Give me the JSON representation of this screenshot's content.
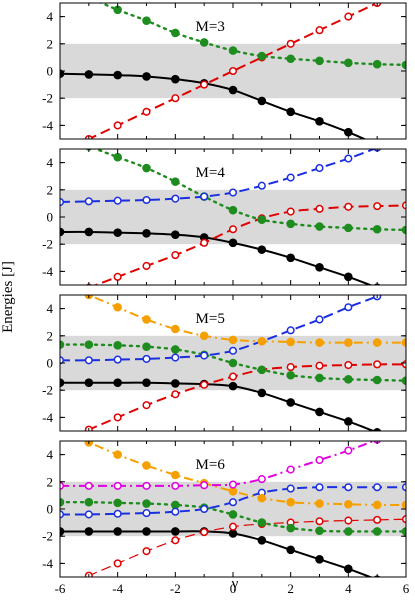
{
  "chart_data": {
    "type": "line",
    "xlabel": "γ",
    "ylabel": "Energies [J]",
    "x_ticks": [
      -6,
      -4,
      -2,
      0,
      2,
      4,
      6
    ],
    "y_ticks": [
      -4,
      -2,
      0,
      2,
      4
    ],
    "xlim": [
      -6,
      6
    ],
    "ylim": [
      -5,
      5
    ],
    "band": [
      -2,
      2
    ],
    "band_color": "#d9d9d9",
    "panels": [
      {
        "label": "M=3",
        "series": [
          {
            "color": "#000000",
            "dash": "solid",
            "marker": "filled",
            "width": 2,
            "x": [
              -6,
              -5,
              -4,
              -3,
              -2,
              -1,
              0,
              1,
              2,
              3,
              4,
              5,
              6
            ],
            "y": [
              -0.2,
              -0.25,
              -0.3,
              -0.4,
              -0.6,
              -0.9,
              -1.4,
              -2.2,
              -3.0,
              -3.7,
              -4.5,
              -5.4,
              -6.2
            ]
          },
          {
            "color": "#e00000",
            "dash": "long",
            "marker": "open",
            "width": 2,
            "x": [
              -6,
              -5,
              -4,
              -3,
              -2,
              -1,
              0,
              1,
              2,
              3,
              4,
              5,
              6
            ],
            "y": [
              -6,
              -5,
              -4,
              -3,
              -2,
              -1,
              0,
              1,
              2,
              3,
              4,
              5,
              6
            ]
          },
          {
            "color": "#1e8c1e",
            "dash": "dot",
            "marker": "filled",
            "width": 2.4,
            "x": [
              -6,
              -5,
              -4,
              -3,
              -2,
              -1,
              0,
              1,
              2,
              3,
              4,
              5,
              6
            ],
            "y": [
              6.2,
              5.4,
              4.5,
              3.7,
              2.8,
              2.1,
              1.5,
              1.1,
              0.9,
              0.75,
              0.6,
              0.5,
              0.45
            ]
          }
        ]
      },
      {
        "label": "M=4",
        "series": [
          {
            "color": "#000000",
            "dash": "solid",
            "marker": "filled",
            "width": 2,
            "x": [
              -6,
              -5,
              -4,
              -3,
              -2,
              -1,
              0,
              1,
              2,
              3,
              4,
              5,
              6
            ],
            "y": [
              -1.1,
              -1.1,
              -1.15,
              -1.2,
              -1.3,
              -1.5,
              -1.9,
              -2.4,
              -3.0,
              -3.7,
              -4.4,
              -5.2,
              -6.0
            ]
          },
          {
            "color": "#e00000",
            "dash": "long",
            "marker": "open",
            "width": 2,
            "x": [
              -6,
              -5,
              -4,
              -3,
              -2,
              -1,
              0,
              1,
              2,
              3,
              4,
              5,
              6
            ],
            "y": [
              -6.0,
              -5.2,
              -4.4,
              -3.6,
              -2.8,
              -1.9,
              -0.9,
              -0.1,
              0.4,
              0.6,
              0.75,
              0.8,
              0.85
            ]
          },
          {
            "color": "#1e8c1e",
            "dash": "dot",
            "marker": "filled",
            "width": 2.4,
            "x": [
              -6,
              -5,
              -4,
              -3,
              -2,
              -1,
              0,
              1,
              2,
              3,
              4,
              5,
              6
            ],
            "y": [
              6.0,
              5.2,
              4.4,
              3.6,
              2.6,
              1.5,
              0.5,
              -0.2,
              -0.5,
              -0.7,
              -0.8,
              -0.9,
              -0.95
            ]
          },
          {
            "color": "#1a2fe0",
            "dash": "long",
            "marker": "open",
            "width": 2,
            "x": [
              -6,
              -5,
              -4,
              -3,
              -2,
              -1,
              0,
              1,
              2,
              3,
              4,
              5,
              6
            ],
            "y": [
              1.1,
              1.15,
              1.2,
              1.25,
              1.35,
              1.5,
              1.8,
              2.3,
              2.9,
              3.6,
              4.3,
              5.1,
              6.0
            ]
          }
        ]
      },
      {
        "label": "M=5",
        "series": [
          {
            "color": "#000000",
            "dash": "solid",
            "marker": "filled",
            "width": 2,
            "x": [
              -6,
              -5,
              -4,
              -3,
              -2,
              -1,
              0,
              1,
              2,
              3,
              4,
              5,
              6
            ],
            "y": [
              -1.45,
              -1.45,
              -1.45,
              -1.45,
              -1.5,
              -1.55,
              -1.7,
              -2.2,
              -2.9,
              -3.6,
              -4.3,
              -5.1,
              -5.9
            ]
          },
          {
            "color": "#e00000",
            "dash": "long",
            "marker": "open",
            "width": 2,
            "x": [
              -6,
              -5,
              -4,
              -3,
              -2,
              -1,
              0,
              1,
              2,
              3,
              4,
              5,
              6
            ],
            "y": [
              -5.8,
              -4.9,
              -4.0,
              -3.1,
              -2.3,
              -1.6,
              -1.0,
              -0.5,
              -0.3,
              -0.2,
              -0.15,
              -0.1,
              -0.1
            ]
          },
          {
            "color": "#1e8c1e",
            "dash": "dot",
            "marker": "filled",
            "width": 2.4,
            "x": [
              -6,
              -5,
              -4,
              -3,
              -2,
              -1,
              0,
              1,
              2,
              3,
              4,
              5,
              6
            ],
            "y": [
              1.35,
              1.35,
              1.3,
              1.2,
              1.0,
              0.6,
              0.0,
              -0.5,
              -0.9,
              -1.1,
              -1.2,
              -1.25,
              -1.3
            ]
          },
          {
            "color": "#1a2fe0",
            "dash": "long",
            "marker": "open",
            "width": 2,
            "x": [
              -6,
              -5,
              -4,
              -3,
              -2,
              -1,
              0,
              1,
              2,
              3,
              4,
              5,
              6
            ],
            "y": [
              0.2,
              0.2,
              0.25,
              0.3,
              0.4,
              0.55,
              0.9,
              1.6,
              2.4,
              3.2,
              4.1,
              4.9,
              5.8
            ]
          },
          {
            "color": "#f5a000",
            "dash": "dashdot",
            "marker": "filled",
            "width": 2,
            "x": [
              -6,
              -5,
              -4,
              -3,
              -2,
              -1,
              0,
              1,
              2,
              3,
              4,
              5,
              6
            ],
            "y": [
              5.9,
              5.0,
              4.1,
              3.2,
              2.5,
              2.0,
              1.7,
              1.6,
              1.55,
              1.5,
              1.5,
              1.5,
              1.5
            ]
          }
        ]
      },
      {
        "label": "M=6",
        "series": [
          {
            "color": "#000000",
            "dash": "solid",
            "marker": "filled",
            "width": 2,
            "x": [
              -6,
              -5,
              -4,
              -3,
              -2,
              -1,
              0,
              1,
              2,
              3,
              4,
              5,
              6
            ],
            "y": [
              -1.65,
              -1.65,
              -1.65,
              -1.65,
              -1.65,
              -1.65,
              -1.8,
              -2.3,
              -3.0,
              -3.7,
              -4.4,
              -5.2,
              -6.0
            ]
          },
          {
            "color": "#e00000",
            "dash": "long",
            "marker": "open",
            "width": 1.2,
            "x": [
              -6,
              -5,
              -4,
              -3,
              -2,
              -1,
              0,
              1,
              2,
              3,
              4,
              5,
              6
            ],
            "y": [
              -5.8,
              -4.9,
              -4.0,
              -3.1,
              -2.3,
              -1.7,
              -1.3,
              -1.1,
              -1.0,
              -0.9,
              -0.85,
              -0.8,
              -0.75
            ]
          },
          {
            "color": "#1e8c1e",
            "dash": "dot",
            "marker": "filled",
            "width": 2.4,
            "x": [
              -6,
              -5,
              -4,
              -3,
              -2,
              -1,
              0,
              1,
              2,
              3,
              4,
              5,
              6
            ],
            "y": [
              0.5,
              0.5,
              0.45,
              0.4,
              0.3,
              0.1,
              -0.4,
              -1.0,
              -1.4,
              -1.6,
              -1.65,
              -1.65,
              -1.65
            ]
          },
          {
            "color": "#1a2fe0",
            "dash": "long",
            "marker": "open",
            "width": 2,
            "x": [
              -6,
              -5,
              -4,
              -3,
              -2,
              -1,
              0,
              1,
              2,
              3,
              4,
              5,
              6
            ],
            "y": [
              -0.4,
              -0.4,
              -0.35,
              -0.3,
              -0.2,
              0.0,
              0.5,
              1.2,
              1.5,
              1.6,
              1.6,
              1.6,
              1.6
            ]
          },
          {
            "color": "#f5a000",
            "dash": "dashdot",
            "marker": "filled",
            "width": 2,
            "x": [
              -6,
              -5,
              -4,
              -3,
              -2,
              -1,
              0,
              1,
              2,
              3,
              4,
              5,
              6
            ],
            "y": [
              5.8,
              4.9,
              4.0,
              3.2,
              2.5,
              1.9,
              1.3,
              0.8,
              0.5,
              0.4,
              0.35,
              0.3,
              0.3
            ]
          },
          {
            "color": "#e000e0",
            "dash": "dashdot",
            "marker": "open",
            "width": 2,
            "x": [
              -6,
              -5,
              -4,
              -3,
              -2,
              -1,
              0,
              1,
              2,
              3,
              4,
              5,
              6
            ],
            "y": [
              1.7,
              1.7,
              1.7,
              1.7,
              1.7,
              1.75,
              1.8,
              2.2,
              2.9,
              3.6,
              4.3,
              5.1,
              5.9
            ]
          }
        ]
      }
    ]
  }
}
